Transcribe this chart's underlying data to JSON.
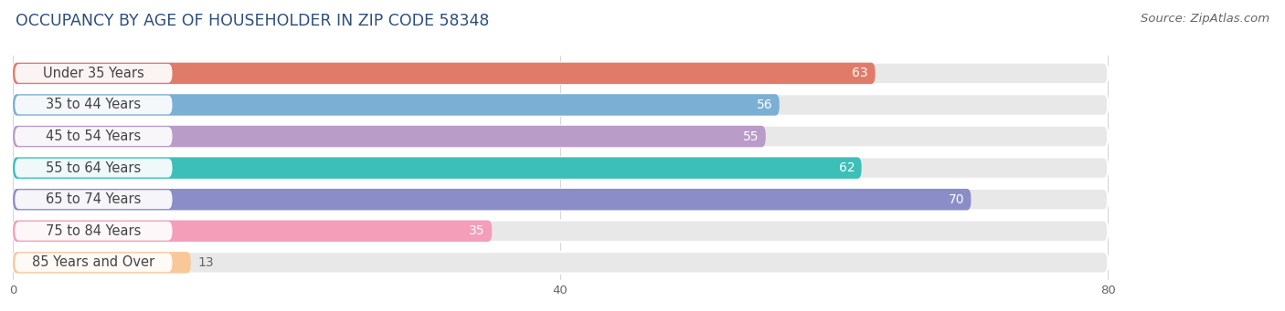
{
  "title": "OCCUPANCY BY AGE OF HOUSEHOLDER IN ZIP CODE 58348",
  "source": "Source: ZipAtlas.com",
  "categories": [
    "Under 35 Years",
    "35 to 44 Years",
    "45 to 54 Years",
    "55 to 64 Years",
    "65 to 74 Years",
    "75 to 84 Years",
    "85 Years and Over"
  ],
  "values": [
    63,
    56,
    55,
    62,
    70,
    35,
    13
  ],
  "bar_colors": [
    "#E07B6A",
    "#7BAFD4",
    "#B99CC8",
    "#3CBFB8",
    "#8B8DC8",
    "#F49EBA",
    "#F8C898"
  ],
  "xlim_data": 80,
  "xlim_display": 92,
  "xticks": [
    0,
    40,
    80
  ],
  "background_color": "#ffffff",
  "bar_bg_color": "#e8e8e8",
  "title_fontsize": 12.5,
  "source_fontsize": 9.5,
  "label_fontsize": 10.5,
  "value_fontsize": 10
}
